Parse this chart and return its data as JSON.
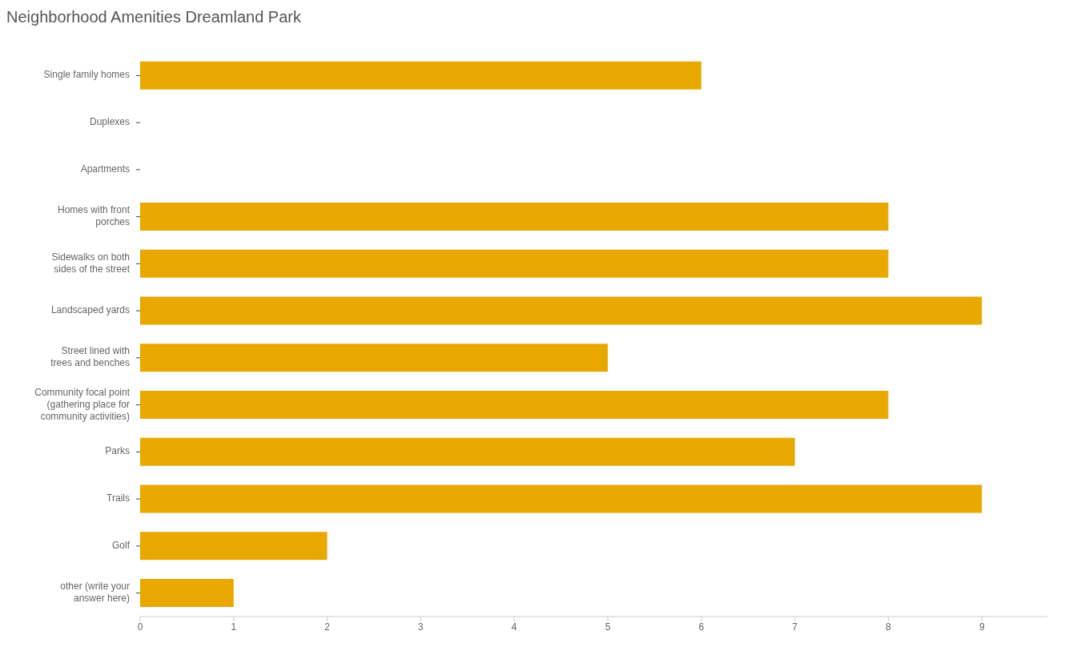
{
  "chart_data": {
    "type": "bar",
    "orientation": "horizontal",
    "title": "Neighborhood Amenities Dreamland Park",
    "categories": [
      "Single family homes",
      "Duplexes",
      "Apartments",
      "Homes with front porches",
      "Sidewalks on both sides of the street",
      "Landscaped yards",
      "Street lined with trees and benches",
      "Community focal point (gathering place for community activities)",
      "Parks",
      "Trails",
      "Golf",
      "other (write your answer here)"
    ],
    "values": [
      6,
      0,
      0,
      8,
      8,
      9,
      5,
      8,
      7,
      9,
      2,
      1
    ],
    "color": "#e8a800",
    "xlim": [
      0,
      9.7
    ],
    "xticks": [
      0,
      1,
      2,
      3,
      4,
      5,
      6,
      7,
      8,
      9
    ],
    "grid": false
  }
}
